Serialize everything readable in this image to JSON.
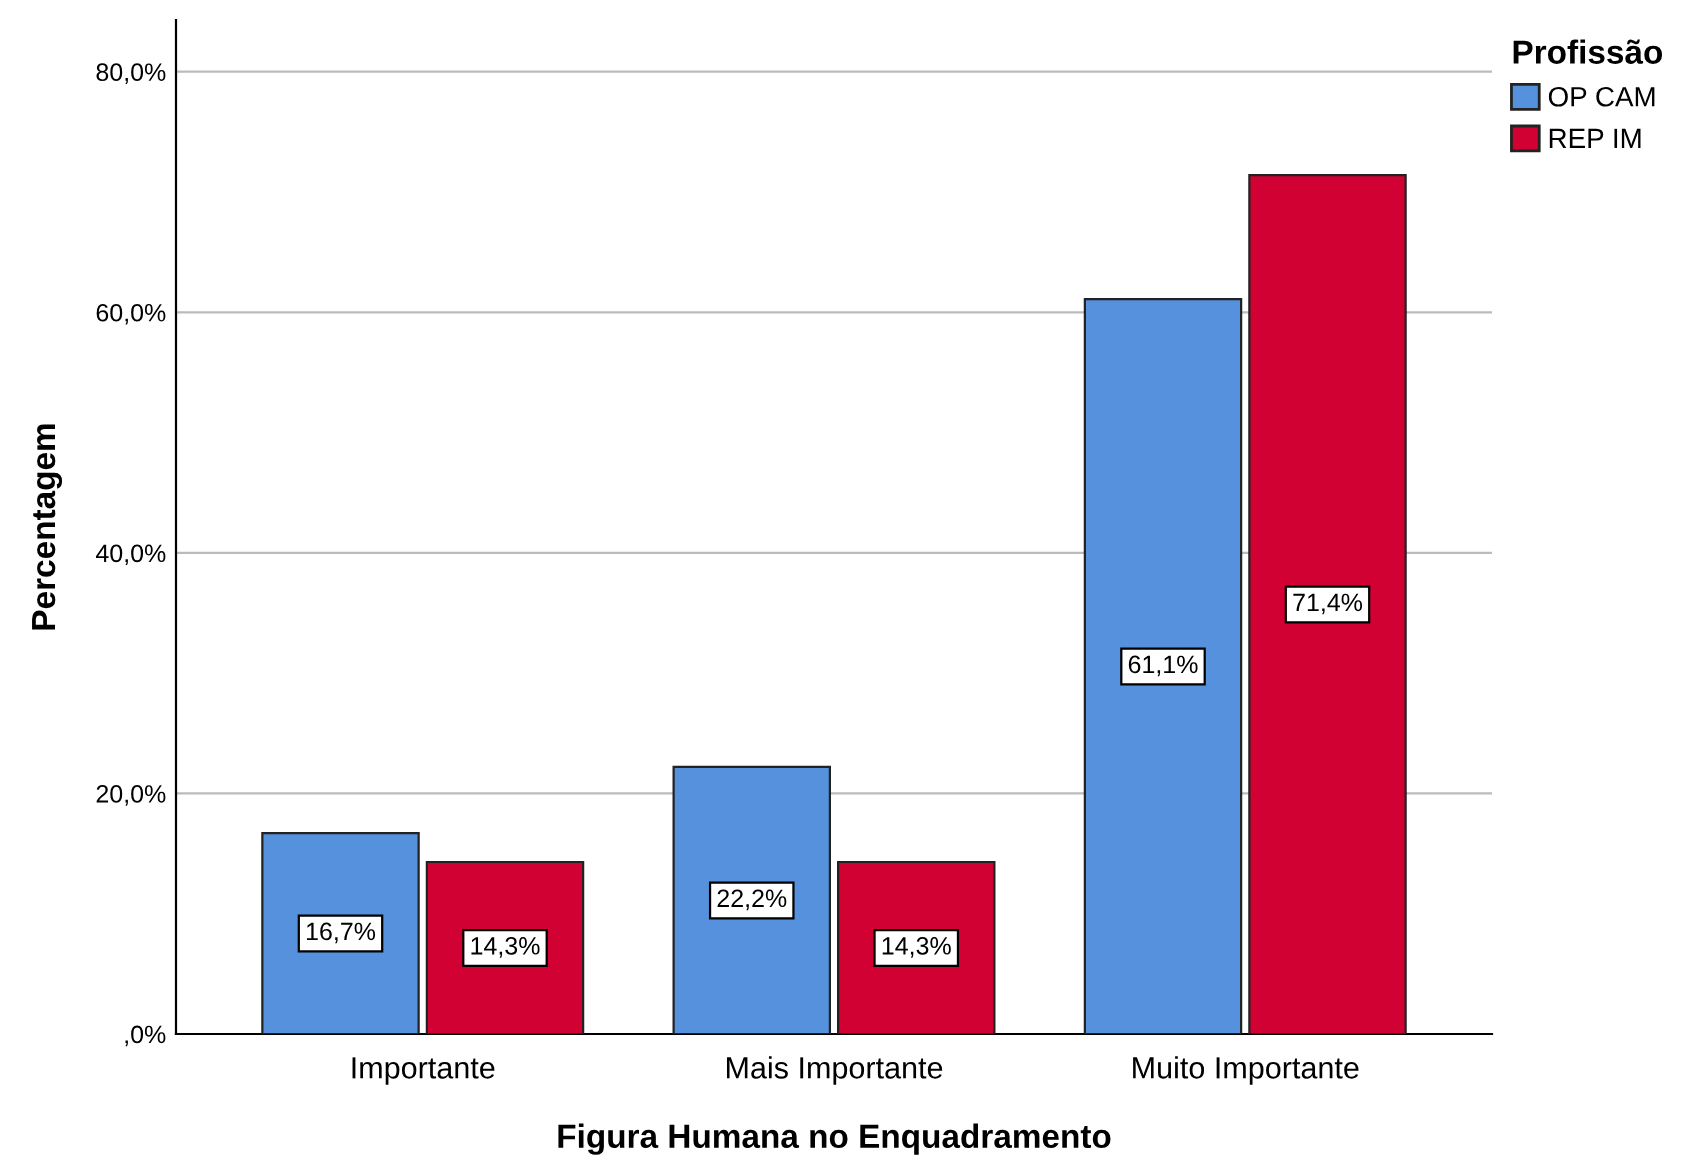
{
  "chart_data": {
    "type": "bar",
    "xlabel": "Figura Humana no Enquadramento",
    "ylabel": "Percentagem",
    "legend_title": "Profissão",
    "categories": [
      "Importante",
      "Mais Importante",
      "Muito Importante"
    ],
    "series": [
      {
        "name": "OP CAM",
        "color": "#5591dd",
        "values": [
          16.7,
          22.2,
          61.1
        ],
        "value_labels": [
          "16,7%",
          "22,2%",
          "61,1%"
        ]
      },
      {
        "name": "REP IM",
        "color": "#d20134",
        "values": [
          14.3,
          14.3,
          71.4
        ],
        "value_labels": [
          "14,3%",
          "14,3%",
          "71,4%"
        ]
      }
    ],
    "ylim": [
      0,
      84.3
    ],
    "yticks": [
      {
        "value": 0,
        "label": ",0%"
      },
      {
        "value": 20,
        "label": "20,0%"
      },
      {
        "value": 40,
        "label": "40,0%"
      },
      {
        "value": 60,
        "label": "60,0%"
      },
      {
        "value": 80,
        "label": "80,0%"
      }
    ],
    "grid": "y",
    "legend": "top right"
  }
}
